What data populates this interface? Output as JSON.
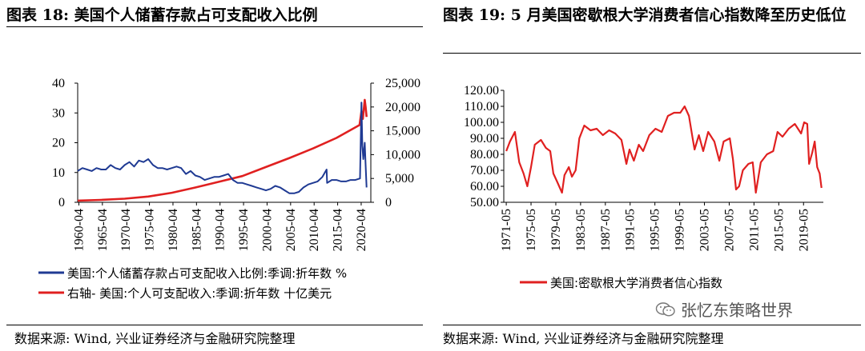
{
  "titles": {
    "left": "图表 18:  美国个人储蓄存款占可支配收入比例",
    "right": "图表 19:  5 月美国密歇根大学消费者信心指数降至历史低位"
  },
  "sources": {
    "left": "数据来源: Wind, 兴业证券经济与金融研究院整理",
    "right": "数据来源: Wind, 兴业证券经济与金融研究院整理"
  },
  "watermark": {
    "text": "张忆东策略世界",
    "icon": "wechat-icon"
  },
  "chart_data": [
    {
      "type": "line",
      "x_ticks": [
        "1960-04",
        "1965-04",
        "1970-04",
        "1975-04",
        "1980-04",
        "1985-04",
        "1990-04",
        "1995-04",
        "2000-04",
        "2005-04",
        "2010-04",
        "2015-04",
        "2020-04"
      ],
      "y_left_ticks": [
        "0",
        "10",
        "20",
        "30",
        "40"
      ],
      "y_right_ticks": [
        "0",
        "5,000",
        "10,000",
        "15,000",
        "20,000",
        "25,000"
      ],
      "ylim_left": [
        0,
        40
      ],
      "ylim_right": [
        0,
        25000
      ],
      "legend_position": "bottom",
      "series": [
        {
          "name": "美国:个人储蓄存款占可支配收入比例:季调:折年数 %",
          "axis": "left",
          "color": "#1f3a93",
          "x": [
            1960.0,
            1961.0,
            1962.0,
            1963.0,
            1964.0,
            1965.0,
            1966.0,
            1967.0,
            1968.0,
            1969.0,
            1970.0,
            1971.0,
            1972.0,
            1973.0,
            1974.0,
            1975.0,
            1976.0,
            1977.0,
            1978.0,
            1979.0,
            1980.0,
            1981.0,
            1982.0,
            1983.0,
            1984.0,
            1985.0,
            1986.0,
            1987.0,
            1988.0,
            1989.0,
            1990.0,
            1991.0,
            1992.0,
            1993.0,
            1994.0,
            1995.0,
            1996.0,
            1997.0,
            1998.0,
            1999.0,
            2000.0,
            2001.0,
            2002.0,
            2003.0,
            2004.0,
            2005.0,
            2006.0,
            2007.0,
            2008.0,
            2009.0,
            2010.0,
            2011.0,
            2012.0,
            2012.9,
            2013.0,
            2014.0,
            2015.0,
            2016.0,
            2017.0,
            2018.0,
            2019.0,
            2020.0,
            2020.3,
            2020.5,
            2020.7,
            2021.0,
            2021.2,
            2021.4
          ],
          "values": [
            10.5,
            11.5,
            11.0,
            10.5,
            11.5,
            11.0,
            11.0,
            12.5,
            11.5,
            11.0,
            12.5,
            13.5,
            12.0,
            14.0,
            13.5,
            14.5,
            12.5,
            11.5,
            11.5,
            11.0,
            11.5,
            12.0,
            11.5,
            9.5,
            10.5,
            9.0,
            8.5,
            7.5,
            8.0,
            8.5,
            8.5,
            9.0,
            9.5,
            7.5,
            6.5,
            6.5,
            6.0,
            5.5,
            5.0,
            4.5,
            4.0,
            4.5,
            5.5,
            5.0,
            4.0,
            3.0,
            3.0,
            3.5,
            5.0,
            6.0,
            6.5,
            7.0,
            8.5,
            11.0,
            6.5,
            7.5,
            7.5,
            7.0,
            7.0,
            7.5,
            7.5,
            8.0,
            33.5,
            19.0,
            14.5,
            20.0,
            12.5,
            5.0
          ]
        },
        {
          "name": "右轴- 美国:个人可支配收入:季调:折年数 十亿美元",
          "axis": "right",
          "color": "#e02020",
          "x": [
            1960,
            1965,
            1970,
            1975,
            1980,
            1985,
            1990,
            1995,
            2000,
            2005,
            2010,
            2015,
            2019.9,
            2020.3,
            2020.6,
            2021.0,
            2021.2,
            2021.4
          ],
          "values": [
            350,
            500,
            750,
            1200,
            2000,
            3100,
            4300,
            5500,
            7400,
            9300,
            11300,
            13500,
            16200,
            19100,
            17500,
            21500,
            20000,
            17900
          ]
        }
      ]
    },
    {
      "type": "line",
      "x_ticks": [
        "1971-05",
        "1975-05",
        "1979-05",
        "1983-05",
        "1987-05",
        "1991-05",
        "1995-05",
        "1999-05",
        "2003-05",
        "2007-05",
        "2011-05",
        "2015-05",
        "2019-05"
      ],
      "y_ticks": [
        "50.00",
        "60.00",
        "70.00",
        "80.00",
        "90.00",
        "100.00",
        "110.00",
        "120.00"
      ],
      "ylim": [
        50,
        120
      ],
      "legend_position": "bottom",
      "series": [
        {
          "name": "美国:密歇根大学消费者信心指数",
          "color": "#e02020",
          "x": [
            1971.4,
            1972.0,
            1972.8,
            1973.5,
            1974.2,
            1974.8,
            1975.4,
            1976.0,
            1977.0,
            1977.8,
            1978.5,
            1979.0,
            1979.6,
            1980.4,
            1980.8,
            1981.5,
            1982.0,
            1982.6,
            1983.2,
            1984.0,
            1985.0,
            1986.0,
            1987.0,
            1988.0,
            1989.0,
            1990.0,
            1990.8,
            1991.3,
            1992.0,
            1992.8,
            1993.5,
            1994.5,
            1995.5,
            1996.5,
            1997.5,
            1998.5,
            1999.5,
            2000.2,
            2000.9,
            2001.5,
            2001.8,
            2002.5,
            2003.2,
            2004.0,
            2005.0,
            2005.8,
            2006.5,
            2007.5,
            2008.0,
            2008.5,
            2009.0,
            2009.6,
            2010.5,
            2011.2,
            2011.7,
            2012.5,
            2013.5,
            2014.5,
            2015.2,
            2016.0,
            2017.0,
            2018.0,
            2019.0,
            2019.5,
            2020.0,
            2020.3,
            2020.8,
            2021.2,
            2021.6,
            2022.0,
            2022.3
          ],
          "values": [
            82,
            88,
            94,
            75,
            68,
            60,
            72,
            86,
            89,
            84,
            82,
            68,
            63,
            56,
            67,
            72,
            66,
            70,
            90,
            98,
            95,
            96,
            92,
            95,
            93,
            89,
            74,
            83,
            76,
            86,
            82,
            92,
            96,
            94,
            104,
            106,
            106,
            110,
            104,
            90,
            83,
            92,
            82,
            94,
            88,
            76,
            88,
            90,
            77,
            58,
            60,
            70,
            74,
            75,
            56,
            75,
            80,
            82,
            94,
            91,
            96,
            99,
            93,
            100,
            99,
            74,
            81,
            88,
            72,
            68,
            59
          ]
        }
      ]
    }
  ]
}
